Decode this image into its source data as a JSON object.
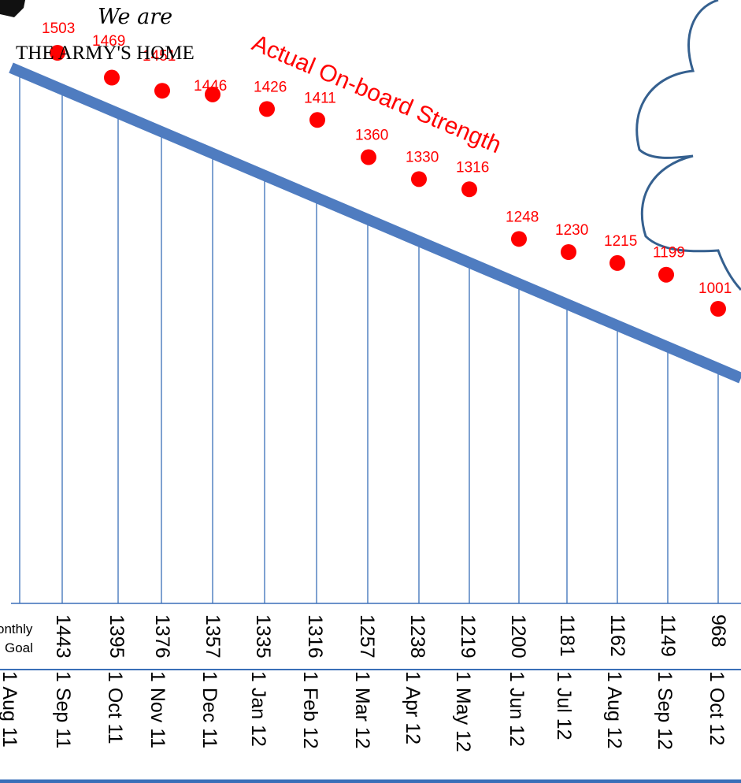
{
  "chart_data": {
    "type": "scatter",
    "title_line1": "We are",
    "title_line2": "THE ARMY'S HOME",
    "series_label": "Actual On-board Strength",
    "goal_row_label_line1": "onthly",
    "goal_row_label_line2": "Goal",
    "categories": [
      "1 Aug 11",
      "1 Sep 11",
      "1 Oct 11",
      "1 Nov 11",
      "1 Dec 11",
      "1 Jan 12",
      "1 Feb 12",
      "1 Mar 12",
      "1 Apr 12",
      "1 May 12",
      "1 Jun 12",
      "1 Jul 12",
      "1 Aug 12",
      "1 Sep 12",
      "1 Oct 12"
    ],
    "actual": [
      1503,
      1469,
      1451,
      1446,
      1426,
      1411,
      1360,
      1330,
      1316,
      1248,
      1230,
      1215,
      1199,
      1001
    ],
    "monthly_goal": [
      1443,
      1395,
      1376,
      1357,
      1335,
      1316,
      1257,
      1238,
      1219,
      1200,
      1181,
      1162,
      1149,
      968
    ],
    "colors": {
      "actual": "#ff0000",
      "trend": "#4f7cc0",
      "grid": "#3a6fb8",
      "cloud": "#35608f"
    }
  }
}
